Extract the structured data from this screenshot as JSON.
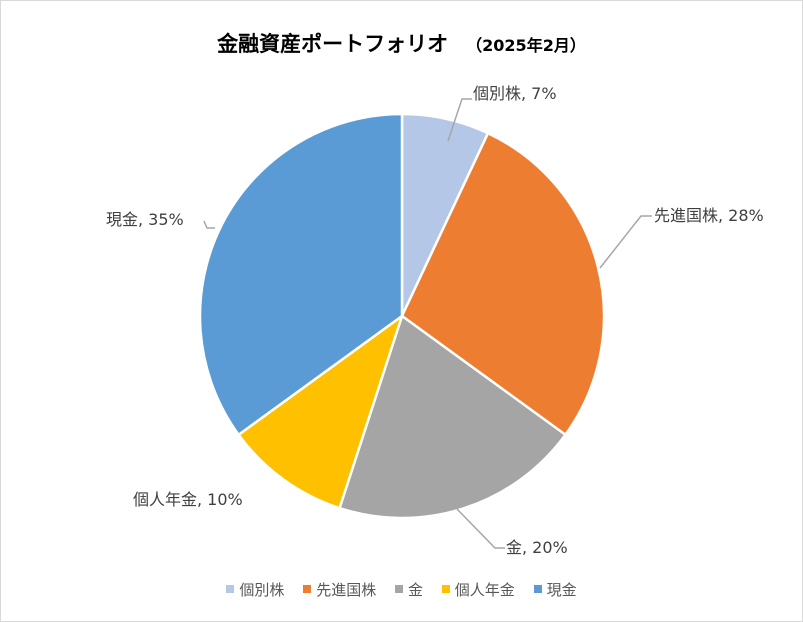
{
  "chart_data": {
    "type": "pie",
    "title": "金融資産ポートフォリオ",
    "subtitle": "（2025年2月）",
    "categories": [
      "個別株",
      "先進国株",
      "金",
      "個人年金",
      "現金"
    ],
    "values": [
      7,
      28,
      20,
      10,
      35
    ],
    "unit": "%",
    "colors": [
      "#b4c7e7",
      "#ed7d31",
      "#a5a5a5",
      "#ffc000",
      "#5b9bd5"
    ],
    "data_labels": [
      "個別株, 7%",
      "先進国株, 28%",
      "金, 20%",
      "個人年金, 10%",
      "現金, 35%"
    ],
    "legend_position": "bottom",
    "start_angle_deg": 0,
    "direction": "clockwise"
  },
  "legend": {
    "items": [
      {
        "label": "個別株",
        "color": "#b4c7e7"
      },
      {
        "label": "先進国株",
        "color": "#ed7d31"
      },
      {
        "label": "金",
        "color": "#a5a5a5"
      },
      {
        "label": "個人年金",
        "color": "#ffc000"
      },
      {
        "label": "現金",
        "color": "#5b9bd5"
      }
    ]
  }
}
